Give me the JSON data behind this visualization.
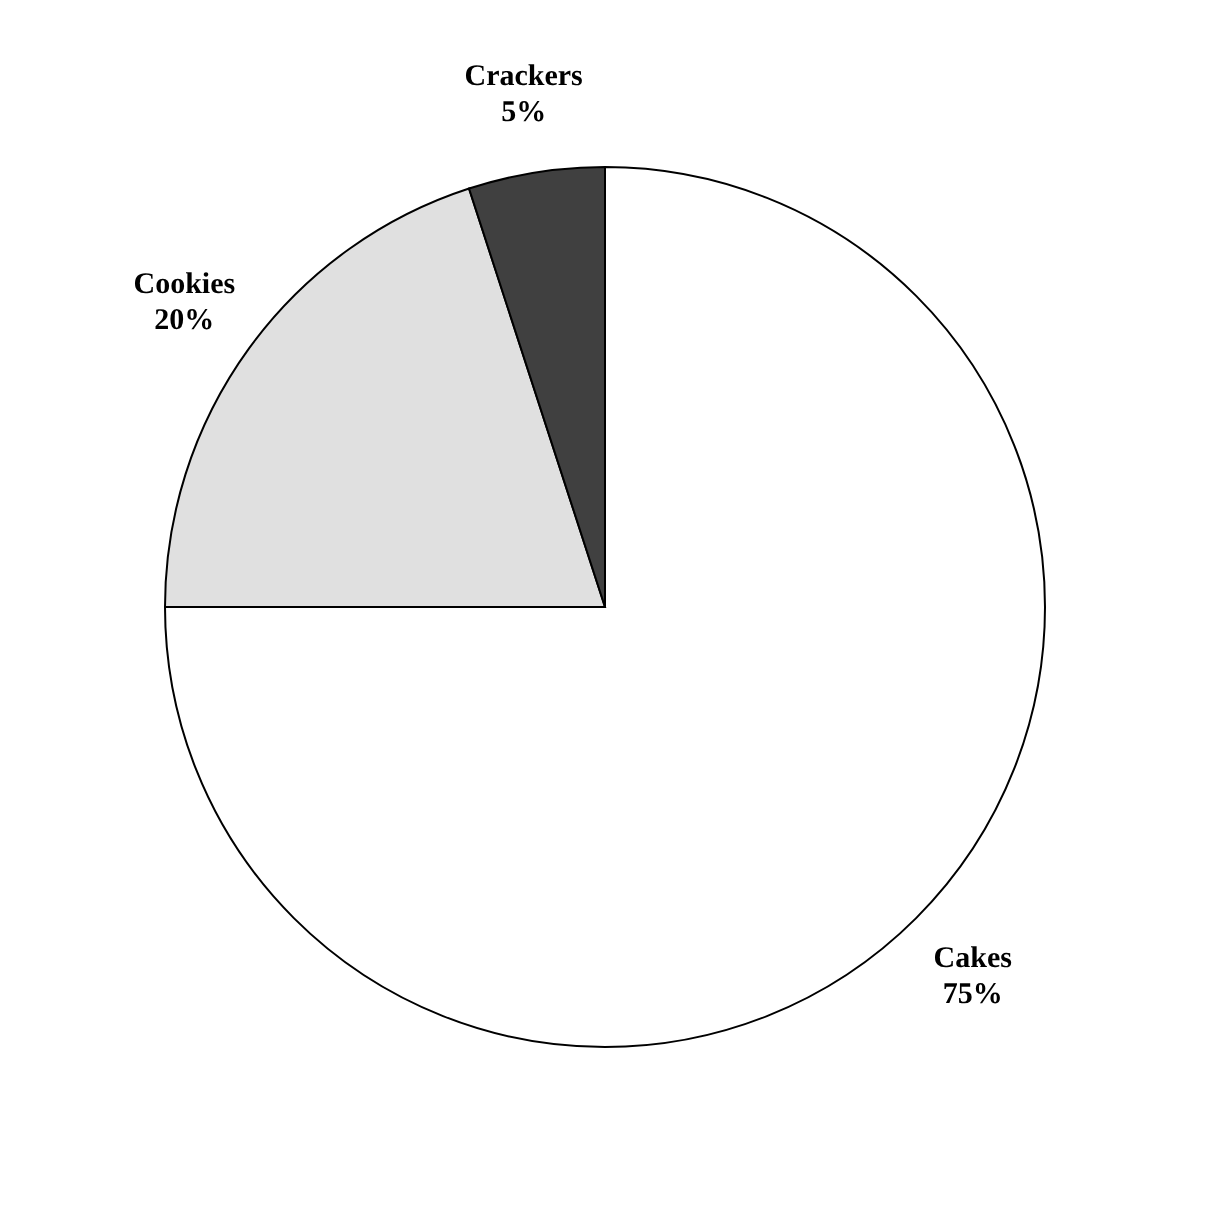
{
  "chart_data": {
    "type": "pie",
    "categories": [
      "Cakes",
      "Cookies",
      "Crackers"
    ],
    "values": [
      75,
      20,
      5
    ],
    "colors": [
      "#ffffff",
      "#e0e0e0",
      "#404040"
    ],
    "value_labels": [
      "75%",
      "20%",
      "5%"
    ],
    "legend": false
  }
}
